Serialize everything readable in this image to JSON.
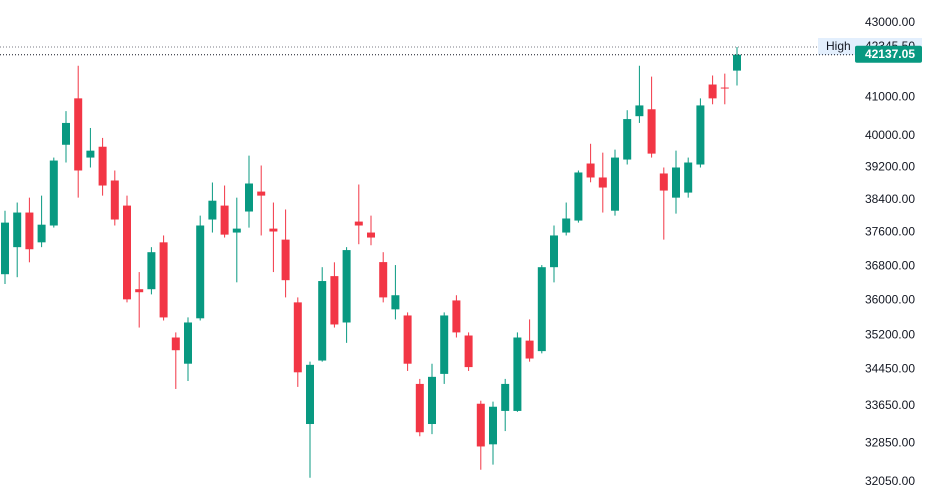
{
  "chart_data": {
    "type": "candlestick",
    "log_scale": true,
    "up_color": "#089981",
    "down_color": "#f23645",
    "ylim": [
      31700,
      43640
    ],
    "yticks": [
      {
        "value": 43000,
        "label": "43000.00"
      },
      {
        "value": 41000,
        "label": "41000.00"
      },
      {
        "value": 40000,
        "label": "40000.00"
      },
      {
        "value": 39200,
        "label": "39200.00"
      },
      {
        "value": 38400,
        "label": "38400.00"
      },
      {
        "value": 37600,
        "label": "37600.00"
      },
      {
        "value": 36800,
        "label": "36800.00"
      },
      {
        "value": 36000,
        "label": "36000.00"
      },
      {
        "value": 35200,
        "label": "35200.00"
      },
      {
        "value": 34450,
        "label": "34450.00"
      },
      {
        "value": 33650,
        "label": "33650.00"
      },
      {
        "value": 32850,
        "label": "32850.00"
      },
      {
        "value": 32050,
        "label": "32050.00"
      }
    ],
    "high_marker": {
      "name": "High",
      "value": 42345.5,
      "label": "42345.50"
    },
    "last_price": {
      "value": 42137.05,
      "label": "42137.05"
    },
    "open": [
      36610,
      37250,
      38085,
      37365,
      37770,
      39775,
      40975,
      39450,
      39725,
      38875,
      38255,
      36260,
      36260,
      37365,
      35155,
      34570,
      35590,
      37915,
      38255,
      37600,
      38110,
      38600,
      37695,
      37430,
      35955,
      33260,
      34640,
      36565,
      35495,
      37865,
      37600,
      36895,
      35795,
      35655,
      34125,
      33260,
      34345,
      36000,
      35200,
      33695,
      32830,
      33540,
      33540,
      35085,
      34850,
      36775,
      37600,
      37890,
      39300,
      38950,
      38130,
      39400,
      40510,
      40690,
      39050,
      38450,
      38575,
      39275,
      41340,
      41260,
      41710
    ],
    "high": [
      38130,
      38330,
      38450,
      38500,
      39450,
      40640,
      41840,
      40205,
      39950,
      39125,
      38500,
      36660,
      37250,
      37530,
      35270,
      35610,
      38010,
      38825,
      38750,
      38450,
      39500,
      39250,
      38330,
      38160,
      36070,
      34615,
      36775,
      36890,
      37250,
      38775,
      38010,
      37130,
      36825,
      35725,
      34235,
      34570,
      35725,
      36120,
      35270,
      33760,
      33740,
      34235,
      35270,
      35565,
      36825,
      37770,
      38330,
      39125,
      39800,
      39575,
      39650,
      40665,
      41840,
      41550,
      39200,
      39625,
      39450,
      40975,
      41580,
      41630,
      42345.5
    ],
    "low": [
      36380,
      36540,
      36890,
      37250,
      37720,
      39325,
      38450,
      39200,
      38500,
      37770,
      35955,
      35380,
      36140,
      35540,
      34015,
      34190,
      35540,
      37600,
      37480,
      36420,
      37720,
      37530,
      36660,
      36070,
      34060,
      32135,
      34615,
      35380,
      35035,
      37320,
      37295,
      35955,
      35565,
      34410,
      33000,
      33045,
      34125,
      35155,
      34410,
      32300,
      32405,
      33110,
      33520,
      34615,
      34800,
      36420,
      37530,
      37840,
      38830,
      38085,
      38010,
      39275,
      40335,
      39450,
      37430,
      38060,
      38450,
      39200,
      40820,
      40820,
      41315
    ],
    "close": [
      37840,
      38085,
      37200,
      37790,
      39375,
      40335,
      39125,
      39625,
      38750,
      37915,
      36025,
      36190,
      37130,
      35610,
      34870,
      35495,
      37770,
      38375,
      37550,
      37695,
      38800,
      38500,
      37625,
      36470,
      34380,
      34545,
      36450,
      35450,
      37180,
      37770,
      37480,
      36070,
      36120,
      34570,
      33085,
      34280,
      35655,
      35270,
      34495,
      32785,
      33630,
      34125,
      35155,
      34685,
      36775,
      37530,
      37940,
      39075,
      38950,
      38700,
      39450,
      40435,
      40790,
      39550,
      38625,
      39200,
      39325,
      40790,
      40975,
      41235,
      42137.05
    ]
  }
}
